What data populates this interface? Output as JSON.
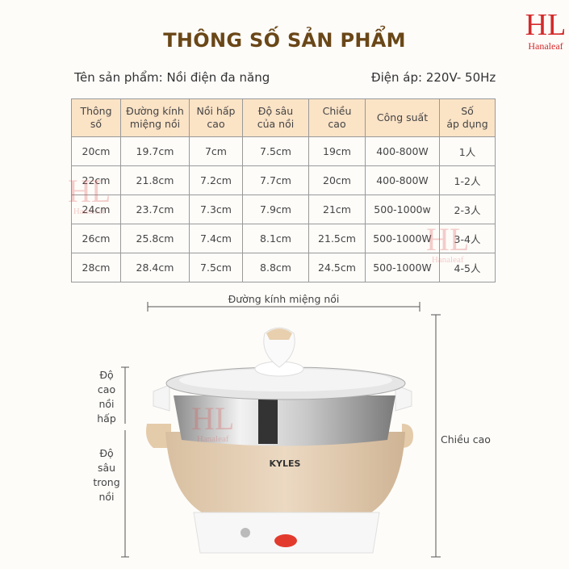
{
  "title": "THÔNG SỐ SẢN PHẨM",
  "product_name": "Tên sản phẩm: Nồi điện đa năng",
  "voltage": "Điện áp: 220V- 50Hz",
  "logo": {
    "mark": "HL",
    "name": "Hanaleaf",
    "color": "#d42a2a"
  },
  "table": {
    "headers": [
      [
        "Thông",
        "số"
      ],
      [
        "Đường kính",
        "miệng nồi"
      ],
      [
        "Nồi hấp",
        "cao"
      ],
      [
        "Độ sâu",
        "của nồi"
      ],
      [
        "Chiều",
        "cao"
      ],
      [
        "Công suất",
        ""
      ],
      [
        "Số",
        "áp dụng"
      ]
    ],
    "rows": [
      [
        "20cm",
        "19.7cm",
        "7cm",
        "7.5cm",
        "19cm",
        "400-800W",
        "1人"
      ],
      [
        "22cm",
        "21.8cm",
        "7.2cm",
        "7.7cm",
        "20cm",
        "400-800W",
        "1-2人"
      ],
      [
        "24cm",
        "23.7cm",
        "7.3cm",
        "7.9cm",
        "21cm",
        "500-1000w",
        "2-3人"
      ],
      [
        "26cm",
        "25.8cm",
        "7.4cm",
        "8.1cm",
        "21.5cm",
        "500-1000W",
        "3-4人"
      ],
      [
        "28cm",
        "28.4cm",
        "7.5cm",
        "8.8cm",
        "24.5cm",
        "500-1000W",
        "4-5人"
      ]
    ],
    "header_color": "#fbe3c6"
  },
  "dimensions": {
    "diameter": "Đường kính miệng nồi",
    "height": "Chiều cao",
    "steamer_height": [
      "Độ",
      "cao",
      "nồi",
      "hấp"
    ],
    "inner_depth": [
      "Độ",
      "sâu",
      "trong",
      "nồi"
    ]
  },
  "product_brand": "KYLES"
}
